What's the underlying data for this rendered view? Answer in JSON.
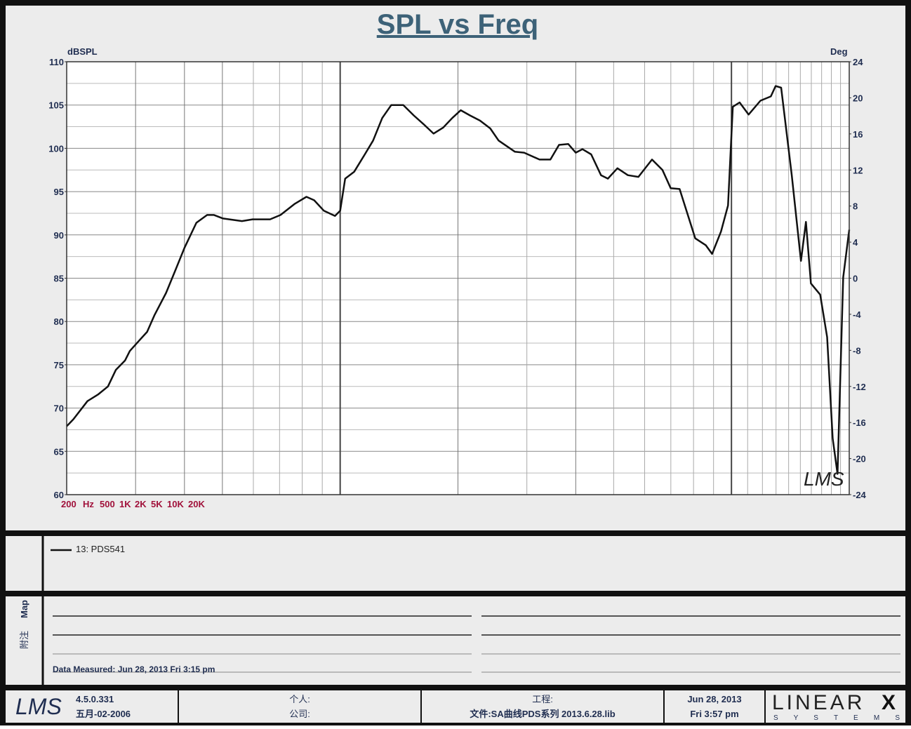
{
  "chart_data": {
    "type": "line",
    "title": "SPL vs Freq",
    "y_label": "dBSPL",
    "y2_label": "Deg",
    "x_tick_labels": [
      "200",
      "Hz",
      "500",
      "1K",
      "2K",
      "5K",
      "10K",
      "20K"
    ],
    "xlim": [
      200,
      20000
    ],
    "xscale": "log",
    "xgrid": [
      200,
      300,
      400,
      500,
      600,
      700,
      800,
      900,
      1000,
      2000,
      3000,
      4000,
      5000,
      6000,
      7000,
      8000,
      9000,
      10000,
      11000,
      12000,
      13000,
      14000,
      15000,
      16000,
      17000,
      18000,
      19000,
      20000
    ],
    "xgrid_major": [
      300,
      400,
      500,
      1000,
      2000,
      4000,
      10000
    ],
    "ylim": [
      60,
      110
    ],
    "yticks": [
      60,
      65,
      70,
      75,
      80,
      85,
      90,
      95,
      100,
      105,
      110
    ],
    "ygrid": [
      60,
      62.5,
      65,
      67.5,
      70,
      72.5,
      75,
      77.5,
      80,
      82.5,
      85,
      87.5,
      90,
      92.5,
      95,
      97.5,
      100,
      102.5,
      105,
      107.5,
      110
    ],
    "y2lim": [
      -24,
      24
    ],
    "y2ticks": [
      -24,
      -20,
      -16,
      -12,
      -8,
      -4,
      0,
      4,
      8,
      12,
      16,
      20,
      24
    ],
    "grid": true,
    "x": [
      200,
      208,
      226,
      241,
      255,
      267,
      282,
      290,
      308,
      321,
      335,
      359,
      379,
      400,
      429,
      457,
      476,
      502,
      561,
      597,
      662,
      704,
      766,
      820,
      858,
      908,
      970,
      1000,
      1030,
      1086,
      1156,
      1214,
      1281,
      1351,
      1450,
      1542,
      1642,
      1732,
      1834,
      1934,
      2033,
      2146,
      2277,
      2418,
      2540,
      2797,
      2952,
      3232,
      3446,
      3625,
      3826,
      4000,
      4160,
      4380,
      4640,
      4832,
      5112,
      5437,
      5784,
      6266,
      6664,
      6993,
      7370,
      8082,
      8600,
      8923,
      9404,
      9800,
      10080,
      10490,
      11060,
      11860,
      12610,
      12970,
      13400,
      14260,
      15050,
      15500,
      15960,
      16860,
      17560,
      18140,
      18670,
      19300,
      20000
    ],
    "series": [
      {
        "name": "13: PDS541",
        "color": "#111111",
        "values": [
          67.9,
          68.7,
          70.8,
          71.6,
          72.5,
          74.4,
          75.5,
          76.6,
          77.9,
          78.8,
          80.7,
          83.3,
          85.9,
          88.5,
          91.4,
          92.3,
          92.3,
          91.9,
          91.6,
          91.8,
          91.8,
          92.3,
          93.6,
          94.4,
          94.0,
          92.8,
          92.2,
          92.8,
          96.5,
          97.3,
          99.3,
          100.9,
          103.5,
          105.0,
          105.0,
          103.8,
          102.7,
          101.7,
          102.4,
          103.5,
          104.4,
          103.8,
          103.2,
          102.3,
          100.9,
          99.6,
          99.5,
          98.7,
          98.7,
          100.4,
          100.5,
          99.5,
          99.9,
          99.3,
          96.9,
          96.5,
          97.7,
          96.9,
          96.7,
          98.7,
          97.5,
          95.4,
          95.3,
          89.6,
          88.8,
          87.8,
          90.4,
          93.4,
          104.8,
          105.3,
          103.9,
          105.5,
          106.0,
          107.2,
          107.0,
          96.9,
          87.0,
          91.5,
          84.4,
          83.1,
          78.2,
          66.5,
          62.4,
          85.1,
          90.6
        ]
      }
    ],
    "watermark": "LMS"
  },
  "notes": {
    "side_labels": [
      "Map",
      "附注"
    ],
    "measured": "Data Measured: Jun 28, 2013  Fri  3:15 pm"
  },
  "footer": {
    "logo": "LMS",
    "version": "4.5.0.331",
    "version_date": "五月-02-2006",
    "person": "个人:",
    "company": "公司:",
    "project": "工程:",
    "file": "文件:SA曲线PDS系列 2013.6.28.lib",
    "date": "Jun 28, 2013",
    "time": "Fri  3:57 pm",
    "brand": "LINEAR",
    "brand_x": "X",
    "brand_sub": "S Y S T E M S"
  }
}
